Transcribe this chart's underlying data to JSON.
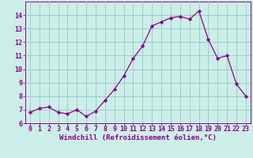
{
  "x": [
    0,
    1,
    2,
    3,
    4,
    5,
    6,
    7,
    8,
    9,
    10,
    11,
    12,
    13,
    14,
    15,
    16,
    17,
    18,
    19,
    20,
    21,
    22,
    23
  ],
  "y": [
    6.8,
    7.1,
    7.2,
    6.8,
    6.7,
    7.0,
    6.5,
    6.9,
    7.7,
    8.5,
    9.5,
    10.8,
    11.7,
    13.2,
    13.5,
    13.8,
    13.9,
    13.7,
    14.3,
    12.2,
    10.8,
    11.0,
    8.9,
    8.0
  ],
  "line_color": "#8B008B",
  "marker": "D",
  "marker_size": 2.2,
  "bg_color": "#cceee8",
  "grid_color": "#99cccc",
  "xlabel": "Windchill (Refroidissement éolien,°C)",
  "xlabel_color": "#8B008B",
  "xlabel_fontsize": 6.5,
  "tick_color": "#8B008B",
  "tick_fontsize": 6.0,
  "ylim": [
    6,
    15
  ],
  "xlim": [
    -0.5,
    23.5
  ],
  "yticks": [
    6,
    7,
    8,
    9,
    10,
    11,
    12,
    13,
    14
  ],
  "xticks": [
    0,
    1,
    2,
    3,
    4,
    5,
    6,
    7,
    8,
    9,
    10,
    11,
    12,
    13,
    14,
    15,
    16,
    17,
    18,
    19,
    20,
    21,
    22,
    23
  ]
}
